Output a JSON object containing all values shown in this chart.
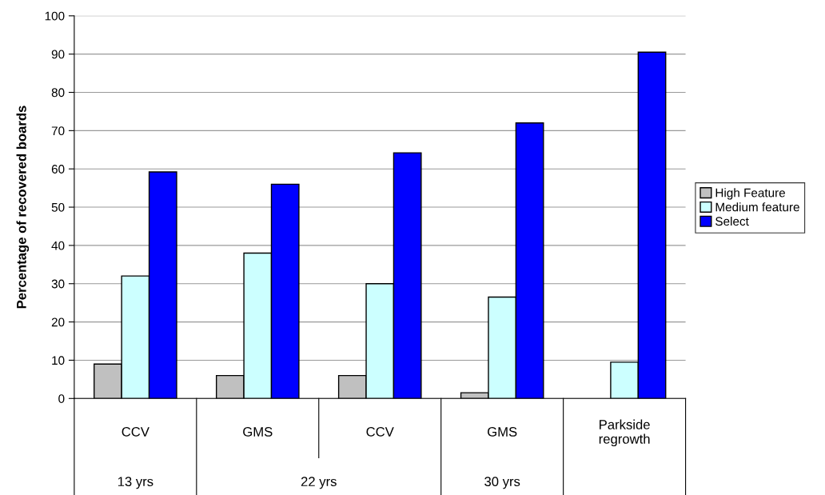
{
  "chart_data": {
    "type": "bar",
    "ylabel": "Percentage of recovered boards",
    "categories": [
      "CCV",
      "GMS",
      "CCV",
      "GMS",
      "Parkside\nregrowth"
    ],
    "series": [
      {
        "name": "High Feature",
        "color": "#c0c0c0",
        "values": [
          9,
          6,
          6,
          1.5,
          null
        ]
      },
      {
        "name": "Medium feature",
        "color": "#ccffff",
        "values": [
          32,
          38,
          30,
          26.5,
          9.5
        ]
      },
      {
        "name": "Select",
        "color": "#0000ff",
        "values": [
          59.2,
          56,
          64.2,
          72,
          90.5
        ]
      }
    ],
    "annotations": [
      "13 yrs",
      "22 yrs",
      "30 yrs"
    ],
    "ylim": [
      0,
      100
    ],
    "yticks": [
      0,
      10,
      20,
      30,
      40,
      50,
      60,
      70,
      80,
      90,
      100
    ],
    "grid": "y",
    "legend": "right"
  }
}
